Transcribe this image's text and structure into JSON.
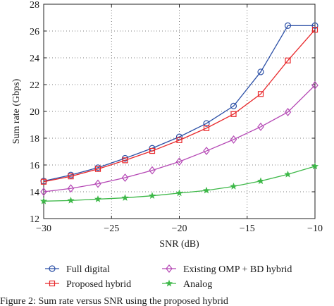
{
  "chart_data": {
    "type": "line",
    "xlabel": "SNR (dB)",
    "ylabel": "Sum rate (Gbps)",
    "xlim": [
      -30,
      -10
    ],
    "ylim": [
      12,
      28
    ],
    "x_ticks": [
      -30,
      -25,
      -20,
      -15,
      -10
    ],
    "x_tick_labels": [
      "−30",
      "−25",
      "−20",
      "−15",
      "−10"
    ],
    "y_ticks": [
      12,
      14,
      16,
      18,
      20,
      22,
      24,
      26,
      28
    ],
    "y_tick_labels": [
      "12",
      "14",
      "16",
      "18",
      "20",
      "22",
      "24",
      "26",
      "28"
    ],
    "grid": true,
    "grid_style": "dotted",
    "legend_position": "below plot, two columns",
    "x": [
      -30,
      -28,
      -26,
      -24,
      -22,
      -20,
      -18,
      -16,
      -14,
      -12,
      -10
    ],
    "series": [
      {
        "name": "Full digital",
        "color": "#2b4fa6",
        "marker": "circle",
        "values": [
          14.8,
          15.25,
          15.8,
          16.5,
          17.25,
          18.1,
          19.1,
          20.4,
          22.95,
          26.4,
          26.4
        ]
      },
      {
        "name": "Proposed hybrid",
        "color": "#e8282b",
        "marker": "square",
        "values": [
          14.75,
          15.15,
          15.7,
          16.35,
          17.05,
          17.85,
          18.75,
          19.8,
          21.3,
          23.8,
          26.1
        ]
      },
      {
        "name": "Existing OMP + BD hybrid",
        "color": "#b548b5",
        "marker": "diamond",
        "values": [
          14.0,
          14.25,
          14.6,
          15.05,
          15.6,
          16.25,
          17.05,
          17.9,
          18.85,
          19.95,
          21.95
        ]
      },
      {
        "name": "Analog",
        "color": "#3db848",
        "marker": "star",
        "values": [
          13.3,
          13.35,
          13.45,
          13.55,
          13.7,
          13.9,
          14.1,
          14.4,
          14.8,
          15.3,
          15.9
        ]
      }
    ]
  },
  "caption": "Figure 2: Sum rate versus SNR using the proposed hybrid"
}
